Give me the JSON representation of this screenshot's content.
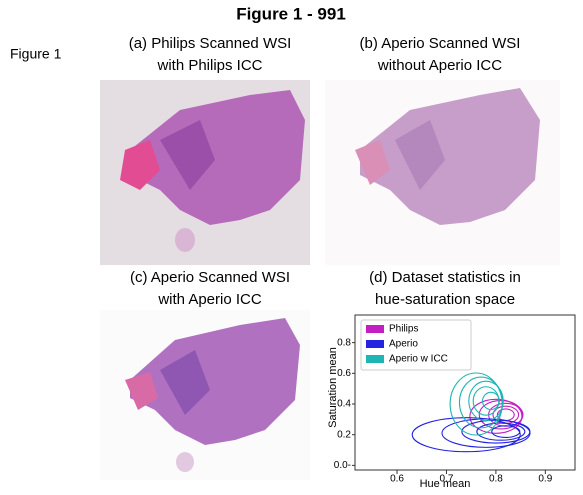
{
  "header": {
    "title": "Figure 1 - 991",
    "figure_label": "Figure 1"
  },
  "panels": [
    {
      "caption": [
        "(a) Philips Scanned WSI",
        "with Philips ICC"
      ]
    },
    {
      "caption": [
        "(b) Aperio Scanned WSI",
        "without Aperio ICC"
      ]
    },
    {
      "caption": [
        "(c) Aperio Scanned WSI",
        "with Aperio ICC"
      ]
    }
  ],
  "chart_data": {
    "type": "contour",
    "title": [
      "(d) Dataset statistics in",
      "hue-saturation space"
    ],
    "x_label": "Hue mean",
    "y_label": "Saturation mean",
    "xlim": [
      0.515,
      0.96
    ],
    "ylim": [
      -0.03,
      0.98
    ],
    "xticks": [
      {
        "value": 0.6,
        "label": "0.6"
      },
      {
        "value": 0.7,
        "label": "0.7"
      },
      {
        "value": 0.8,
        "label": "0.8"
      },
      {
        "value": 0.9,
        "label": "0.9"
      }
    ],
    "yticks": [
      {
        "value": 0,
        "label": "0.0-"
      },
      {
        "value": 0.2,
        "label": "0.2"
      },
      {
        "value": 0.4,
        "label": "0.4"
      },
      {
        "value": 0.6,
        "label": "0.6"
      },
      {
        "value": 0.8,
        "label": "0.8"
      }
    ],
    "legend": "upper left",
    "series": [
      {
        "name": "Philips",
        "color": "#c21fc2",
        "x": [
          0.8,
          0.81,
          0.82,
          0.82,
          0.82
        ],
        "y": [
          0.32,
          0.33,
          0.33,
          0.33,
          0.33
        ]
      },
      {
        "name": "Aperio",
        "color": "#2323e0",
        "x": [
          0.74,
          0.78,
          0.8,
          0.81,
          0.82
        ],
        "y": [
          0.2,
          0.21,
          0.22,
          0.22,
          0.22
        ]
      },
      {
        "name": "Aperio w ICC",
        "color": "#1fb5b5",
        "x": [
          0.76,
          0.77,
          0.78,
          0.78,
          0.79
        ],
        "y": [
          0.4,
          0.41,
          0.42,
          0.42,
          0.42
        ]
      }
    ]
  }
}
